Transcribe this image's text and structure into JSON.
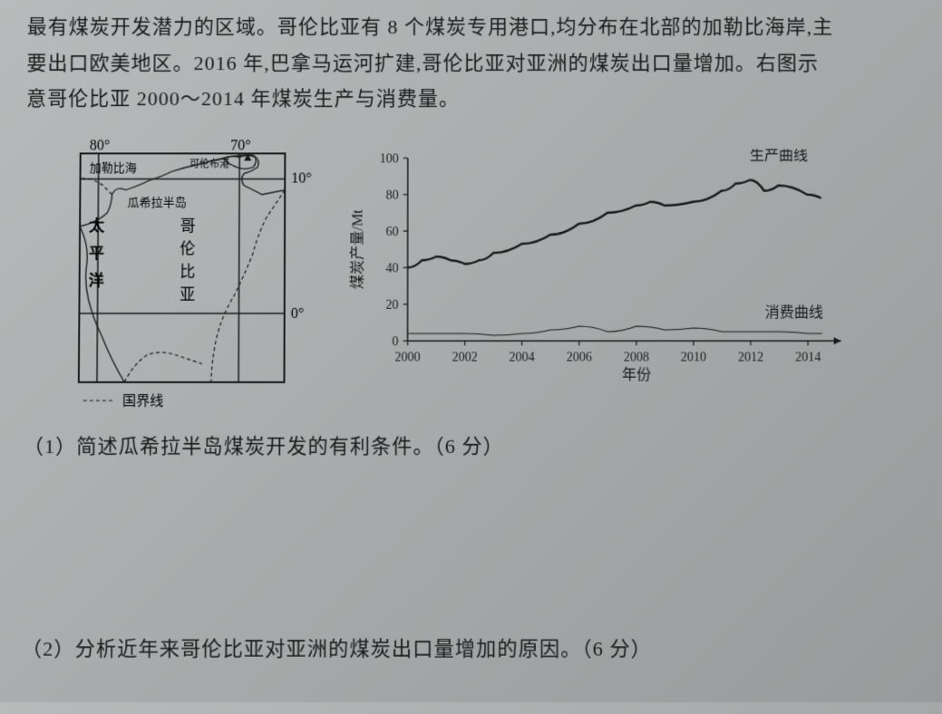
{
  "intro": {
    "line1": "最有煤炭开发潜力的区域。哥伦比亚有 8 个煤炭专用港口,均分布在北部的加勒比海岸,主",
    "line2": "要出口欧美地区。2016 年,巴拿马运河扩建,哥伦比亚对亚洲的煤炭出口量增加。右图示",
    "line3": "意哥伦比亚 2000～2014 年煤炭生产与消费量。"
  },
  "map": {
    "lon_labels": [
      "80°",
      "70°"
    ],
    "lat_labels": [
      "10°",
      "0°"
    ],
    "places": {
      "caribbean": "加勒比海",
      "pacific": "太平洋",
      "guajira": "瓜希拉半岛",
      "colombia_chars": [
        "哥",
        "伦",
        "比",
        "亚"
      ],
      "port": "可伦布港"
    },
    "legend": "国界线",
    "border_color": "#1a1a1a",
    "land_fill": "#e8e8e6",
    "sea_fill": "#d0d2d2"
  },
  "chart": {
    "type": "line",
    "ylabel": "煤炭产量/Mt",
    "xlabel": "年份",
    "xticks": [
      2000,
      2002,
      2004,
      2006,
      2008,
      2010,
      2012,
      2014
    ],
    "yticks": [
      0,
      20,
      40,
      60,
      80,
      100
    ],
    "xlim": [
      2000,
      2015
    ],
    "ylim": [
      0,
      100
    ],
    "series": [
      {
        "name": "生产曲线",
        "label": "生产曲线",
        "data": [
          [
            2000,
            40
          ],
          [
            2000.5,
            44
          ],
          [
            2001,
            46
          ],
          [
            2001.5,
            44
          ],
          [
            2002,
            42
          ],
          [
            2002.5,
            44
          ],
          [
            2003,
            48
          ],
          [
            2004,
            53
          ],
          [
            2005,
            58
          ],
          [
            2006,
            64
          ],
          [
            2007,
            70
          ],
          [
            2008,
            74
          ],
          [
            2008.5,
            76
          ],
          [
            2009,
            74
          ],
          [
            2010,
            76
          ],
          [
            2011,
            82
          ],
          [
            2011.5,
            86
          ],
          [
            2012,
            88
          ],
          [
            2012.5,
            82
          ],
          [
            2013,
            85
          ],
          [
            2014,
            80
          ],
          [
            2014.5,
            78
          ]
        ],
        "color": "#1a1a1a",
        "line_width": 2.5
      },
      {
        "name": "消费曲线",
        "label": "消费曲线",
        "data": [
          [
            2000,
            4
          ],
          [
            2001,
            4
          ],
          [
            2002,
            4
          ],
          [
            2003,
            3
          ],
          [
            2004,
            4
          ],
          [
            2005,
            6
          ],
          [
            2006,
            8
          ],
          [
            2007,
            5
          ],
          [
            2008,
            8
          ],
          [
            2009,
            6
          ],
          [
            2010,
            7
          ],
          [
            2011,
            5
          ],
          [
            2012,
            5
          ],
          [
            2013,
            5
          ],
          [
            2014,
            4
          ],
          [
            2014.5,
            4
          ]
        ],
        "color": "#1a1a1a",
        "line_width": 1.2
      }
    ],
    "axis_color": "#1a1a1a",
    "tick_fontsize": 14,
    "label_fontsize": 16
  },
  "questions": {
    "q1": "（1）简述瓜希拉半岛煤炭开发的有利条件。（6 分）",
    "q2": "（2）分析近年来哥伦比亚对亚洲的煤炭出口量增加的原因。（6 分）"
  }
}
